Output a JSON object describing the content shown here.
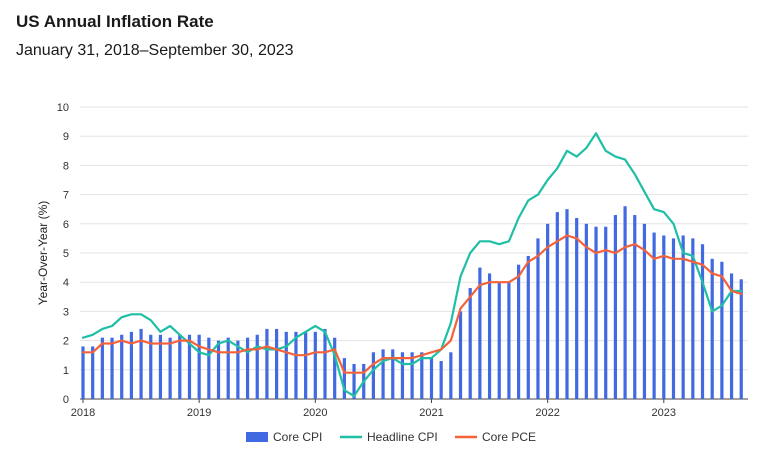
{
  "chart_data": {
    "type": "bar",
    "title": "US Annual Inflation Rate",
    "subtitle": "January 31, 2018–September 30, 2023",
    "ylabel": "Year-Over-Year (%)",
    "xlabel": "",
    "ylim": [
      0,
      10
    ],
    "yticks": [
      "0",
      "1",
      "2",
      "3",
      "4",
      "5",
      "6",
      "7",
      "8",
      "9",
      "10"
    ],
    "xticks": [
      "2018",
      "2019",
      "2020",
      "2021",
      "2022",
      "2023"
    ],
    "grid": true,
    "legend_position": "bottom",
    "colors": {
      "core_cpi": "#4169e1",
      "headline_cpi": "#1fbfa6",
      "core_pce": "#f4623a"
    },
    "x": [
      "2018-01",
      "2018-02",
      "2018-03",
      "2018-04",
      "2018-05",
      "2018-06",
      "2018-07",
      "2018-08",
      "2018-09",
      "2018-10",
      "2018-11",
      "2018-12",
      "2019-01",
      "2019-02",
      "2019-03",
      "2019-04",
      "2019-05",
      "2019-06",
      "2019-07",
      "2019-08",
      "2019-09",
      "2019-10",
      "2019-11",
      "2019-12",
      "2020-01",
      "2020-02",
      "2020-03",
      "2020-04",
      "2020-05",
      "2020-06",
      "2020-07",
      "2020-08",
      "2020-09",
      "2020-10",
      "2020-11",
      "2020-12",
      "2021-01",
      "2021-02",
      "2021-03",
      "2021-04",
      "2021-05",
      "2021-06",
      "2021-07",
      "2021-08",
      "2021-09",
      "2021-10",
      "2021-11",
      "2021-12",
      "2022-01",
      "2022-02",
      "2022-03",
      "2022-04",
      "2022-05",
      "2022-06",
      "2022-07",
      "2022-08",
      "2022-09",
      "2022-10",
      "2022-11",
      "2022-12",
      "2023-01",
      "2023-02",
      "2023-03",
      "2023-04",
      "2023-05",
      "2023-06",
      "2023-07",
      "2023-08",
      "2023-09"
    ],
    "series": [
      {
        "name": "Core CPI",
        "kind": "bar",
        "values": [
          1.8,
          1.8,
          2.1,
          2.1,
          2.2,
          2.3,
          2.4,
          2.2,
          2.2,
          2.1,
          2.2,
          2.2,
          2.2,
          2.1,
          2.0,
          2.1,
          2.0,
          2.1,
          2.2,
          2.4,
          2.4,
          2.3,
          2.3,
          2.3,
          2.3,
          2.4,
          2.1,
          1.4,
          1.2,
          1.2,
          1.6,
          1.7,
          1.7,
          1.6,
          1.6,
          1.6,
          1.4,
          1.3,
          1.6,
          3.0,
          3.8,
          4.5,
          4.3,
          4.0,
          4.0,
          4.6,
          4.9,
          5.5,
          6.0,
          6.4,
          6.5,
          6.2,
          6.0,
          5.9,
          5.9,
          6.3,
          6.6,
          6.3,
          6.0,
          5.7,
          5.6,
          5.5,
          5.6,
          5.5,
          5.3,
          4.8,
          4.7,
          4.3,
          4.1
        ]
      },
      {
        "name": "Headline CPI",
        "kind": "line",
        "values": [
          2.1,
          2.2,
          2.4,
          2.5,
          2.8,
          2.9,
          2.9,
          2.7,
          2.3,
          2.5,
          2.2,
          1.9,
          1.6,
          1.5,
          1.9,
          2.0,
          1.8,
          1.6,
          1.8,
          1.7,
          1.7,
          1.8,
          2.1,
          2.3,
          2.5,
          2.3,
          1.5,
          0.3,
          0.1,
          0.6,
          1.0,
          1.3,
          1.4,
          1.2,
          1.2,
          1.4,
          1.4,
          1.7,
          2.6,
          4.2,
          5.0,
          5.4,
          5.4,
          5.3,
          5.4,
          6.2,
          6.8,
          7.0,
          7.5,
          7.9,
          8.5,
          8.3,
          8.6,
          9.1,
          8.5,
          8.3,
          8.2,
          7.7,
          7.1,
          6.5,
          6.4,
          6.0,
          5.0,
          4.9,
          4.0,
          3.0,
          3.2,
          3.7,
          3.7
        ]
      },
      {
        "name": "Core PCE",
        "kind": "line",
        "values": [
          1.6,
          1.6,
          1.9,
          1.9,
          2.0,
          1.9,
          2.0,
          1.9,
          1.9,
          1.9,
          2.0,
          2.0,
          1.8,
          1.7,
          1.6,
          1.6,
          1.6,
          1.7,
          1.7,
          1.8,
          1.7,
          1.6,
          1.5,
          1.5,
          1.6,
          1.6,
          1.7,
          0.9,
          0.9,
          0.9,
          1.2,
          1.4,
          1.4,
          1.4,
          1.4,
          1.5,
          1.6,
          1.7,
          2.0,
          3.1,
          3.5,
          3.9,
          4.0,
          4.0,
          4.0,
          4.2,
          4.7,
          4.9,
          5.2,
          5.4,
          5.6,
          5.5,
          5.2,
          5.0,
          5.1,
          5.0,
          5.2,
          5.3,
          5.1,
          4.8,
          4.9,
          4.8,
          4.8,
          4.7,
          4.6,
          4.3,
          4.2,
          3.7,
          3.6
        ]
      }
    ]
  }
}
